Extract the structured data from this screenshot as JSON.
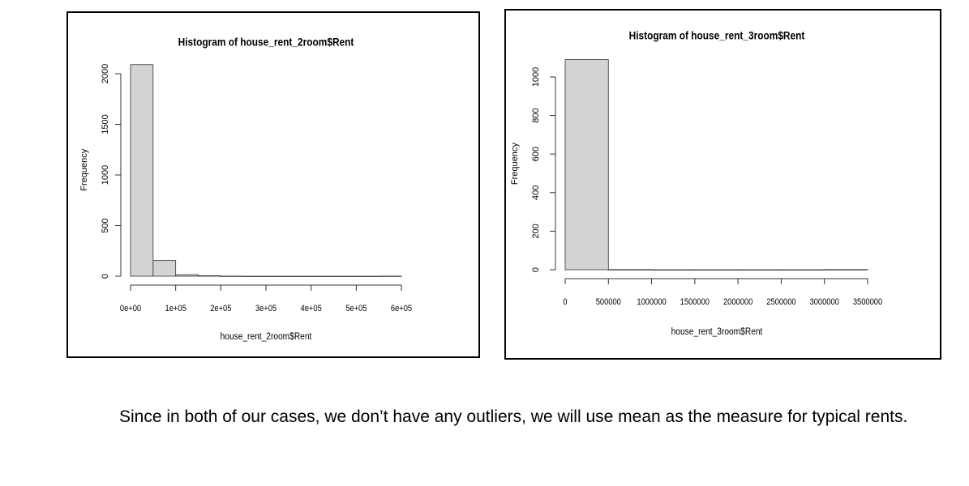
{
  "chart_data": [
    {
      "type": "histogram",
      "title": "Histogram of house_rent_2room$Rent",
      "xlabel": "house_rent_2room$Rent",
      "ylabel": "Frequency",
      "bins": [
        0,
        50000,
        100000,
        150000,
        200000,
        250000,
        300000,
        350000,
        400000,
        450000,
        500000,
        550000,
        600000
      ],
      "values": [
        2090,
        155,
        15,
        5,
        1,
        0,
        0,
        0,
        0,
        0,
        0,
        1
      ],
      "color": "#d3d3d3",
      "xlim": [
        0,
        600000
      ],
      "ylim": [
        0,
        2100
      ],
      "xticks": [
        {
          "value": 0,
          "label": "0e+00"
        },
        {
          "value": 100000,
          "label": "1e+05"
        },
        {
          "value": 200000,
          "label": "2e+05"
        },
        {
          "value": 300000,
          "label": "3e+05"
        },
        {
          "value": 400000,
          "label": "4e+05"
        },
        {
          "value": 500000,
          "label": "5e+05"
        },
        {
          "value": 600000,
          "label": "6e+05"
        }
      ],
      "yticks": [
        0,
        500,
        1000,
        1500,
        2000
      ]
    },
    {
      "type": "histogram",
      "title": "Histogram of house_rent_3room$Rent",
      "xlabel": "house_rent_3room$Rent",
      "ylabel": "Frequency",
      "bins": [
        0,
        500000,
        1000000,
        1500000,
        2000000,
        2500000,
        3000000,
        3500000
      ],
      "values": [
        1090,
        1,
        0,
        0,
        0,
        0,
        1
      ],
      "color": "#d3d3d3",
      "xlim": [
        0,
        3500000
      ],
      "ylim": [
        0,
        1100
      ],
      "xticks": [
        0,
        500000,
        1000000,
        1500000,
        2000000,
        2500000,
        3000000,
        3500000
      ],
      "yticks": [
        0,
        200,
        400,
        600,
        800,
        1000
      ]
    }
  ],
  "text": "Since in both of our cases, we don’t have any outliers, we will use mean as the measure for typical rents."
}
